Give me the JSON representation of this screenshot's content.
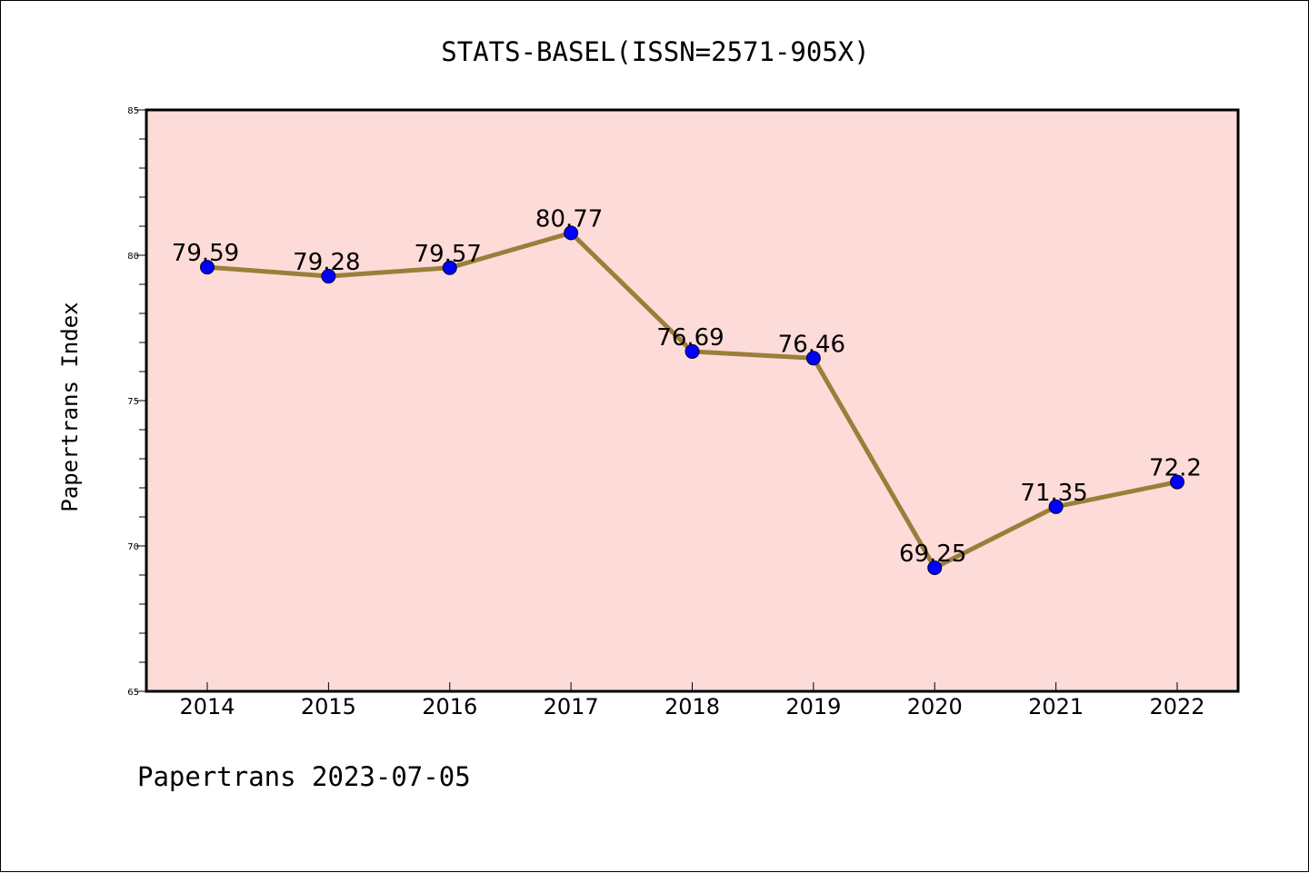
{
  "chart_data": {
    "type": "line",
    "title": "STATS-BASEL(ISSN=2571-905X)",
    "xlabel": "",
    "ylabel": "Papertrans Index",
    "categories": [
      "2014",
      "2015",
      "2016",
      "2017",
      "2018",
      "2019",
      "2020",
      "2021",
      "2022"
    ],
    "values": [
      79.59,
      79.28,
      79.57,
      80.77,
      76.69,
      76.46,
      69.25,
      71.35,
      72.2
    ],
    "data_labels": [
      "79.59",
      "79.28",
      "79.57",
      "80.77",
      "76.69",
      "76.46",
      "69.25",
      "71.35",
      "72.2"
    ],
    "ylim": [
      65,
      85
    ],
    "yticks": [
      65,
      70,
      75,
      80,
      85
    ],
    "yticks_labels": [
      "65",
      "70",
      "75",
      "80",
      "85"
    ],
    "grid": false,
    "legend": "none",
    "colors": {
      "plot_background": "#fddbd8",
      "line": "#9b7e3a",
      "marker": "#0000ff"
    }
  },
  "footer": {
    "text": "Papertrans 2023-07-05"
  }
}
